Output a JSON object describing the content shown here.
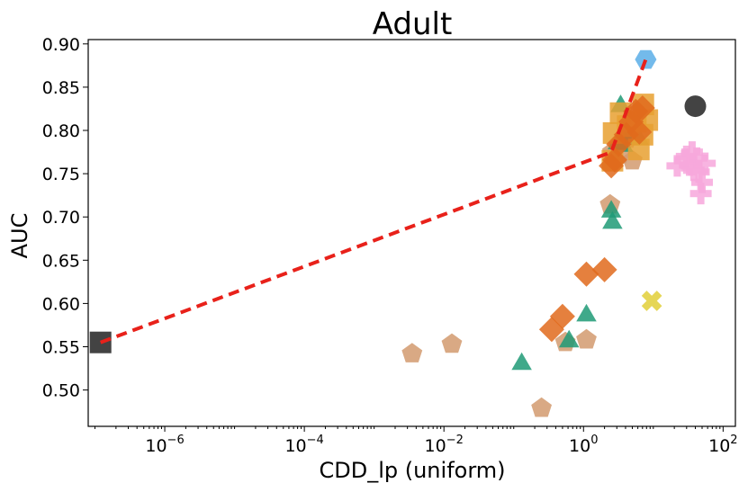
{
  "chart_data": {
    "type": "scatter",
    "title": "Adult",
    "xlabel": "CDD_lp (uniform)",
    "ylabel": "AUC",
    "xscale": "log",
    "xlim": [
      8e-08,
      150
    ],
    "ylim": [
      0.458,
      0.905
    ],
    "x_ticks": [
      {
        "value": 1e-06,
        "base": "10",
        "exp": "−6"
      },
      {
        "value": 0.0001,
        "base": "10",
        "exp": "−4"
      },
      {
        "value": 0.01,
        "base": "10",
        "exp": "−2"
      },
      {
        "value": 1,
        "base": "10",
        "exp": "0"
      },
      {
        "value": 100,
        "base": "10",
        "exp": "2"
      }
    ],
    "y_ticks": [
      {
        "value": 0.5,
        "label": "0.50"
      },
      {
        "value": 0.55,
        "label": "0.55"
      },
      {
        "value": 0.6,
        "label": "0.60"
      },
      {
        "value": 0.65,
        "label": "0.65"
      },
      {
        "value": 0.7,
        "label": "0.70"
      },
      {
        "value": 0.75,
        "label": "0.75"
      },
      {
        "value": 0.8,
        "label": "0.80"
      },
      {
        "value": 0.85,
        "label": "0.85"
      },
      {
        "value": 0.9,
        "label": "0.90"
      }
    ],
    "grid": false,
    "legend": "none",
    "series": [
      {
        "marker": "square",
        "color": "#222222",
        "points": [
          [
            1.2e-07,
            0.555
          ]
        ]
      },
      {
        "marker": "pentagon",
        "color": "#d29a6e",
        "points": [
          [
            0.0035,
            0.542
          ],
          [
            0.013,
            0.553
          ],
          [
            0.25,
            0.479
          ],
          [
            0.55,
            0.555
          ],
          [
            1.1,
            0.558
          ],
          [
            2.4,
            0.714
          ],
          [
            2.6,
            0.775
          ],
          [
            3.3,
            0.772
          ],
          [
            5.0,
            0.765
          ],
          [
            4.2,
            0.79
          ]
        ]
      },
      {
        "marker": "triangle",
        "color": "#1f9a76",
        "points": [
          [
            0.13,
            0.53
          ],
          [
            0.62,
            0.556
          ],
          [
            1.1,
            0.586
          ],
          [
            2.5,
            0.706
          ],
          [
            2.6,
            0.693
          ],
          [
            3.1,
            0.785
          ],
          [
            3.7,
            0.782
          ],
          [
            4.2,
            0.792
          ],
          [
            3.4,
            0.828
          ],
          [
            6.2,
            0.79
          ]
        ]
      },
      {
        "marker": "square",
        "color": "#e8a030",
        "points": [
          [
            2.7,
            0.797
          ],
          [
            3.4,
            0.82
          ],
          [
            4.3,
            0.805
          ],
          [
            5.6,
            0.81
          ],
          [
            7.2,
            0.83
          ],
          [
            8.2,
            0.812
          ],
          [
            6.2,
            0.778
          ],
          [
            2.6,
            0.765
          ],
          [
            7.0,
            0.795
          ]
        ]
      },
      {
        "marker": "diamond",
        "color": "#e06a1c",
        "points": [
          [
            0.35,
            0.57
          ],
          [
            0.5,
            0.585
          ],
          [
            1.1,
            0.634
          ],
          [
            2.0,
            0.639
          ],
          [
            2.5,
            0.759
          ],
          [
            2.8,
            0.766
          ],
          [
            4.1,
            0.795
          ],
          [
            4.8,
            0.81
          ],
          [
            5.6,
            0.822
          ],
          [
            7.0,
            0.826
          ],
          [
            6.3,
            0.798
          ],
          [
            3.2,
            0.784
          ]
        ]
      },
      {
        "marker": "hexagon",
        "color": "#5aaee8",
        "points": [
          [
            7.8,
            0.882
          ]
        ]
      },
      {
        "marker": "circle",
        "color": "#222222",
        "points": [
          [
            40,
            0.828
          ]
        ]
      },
      {
        "marker": "x",
        "color": "#e2d038",
        "points": [
          [
            9.5,
            0.603
          ]
        ]
      },
      {
        "marker": "plus",
        "color": "#f7a8dc",
        "points": [
          [
            22,
            0.759
          ],
          [
            28,
            0.765
          ],
          [
            33,
            0.76
          ],
          [
            38,
            0.754
          ],
          [
            42,
            0.768
          ],
          [
            45,
            0.752
          ],
          [
            50,
            0.74
          ],
          [
            55,
            0.762
          ],
          [
            30,
            0.77
          ],
          [
            48,
            0.727
          ],
          [
            36,
            0.775
          ]
        ]
      }
    ],
    "frontier": {
      "color": "#e8211a",
      "points": [
        [
          1.2e-07,
          0.555
        ],
        [
          2.5,
          0.775
        ],
        [
          7.8,
          0.882
        ]
      ]
    }
  }
}
